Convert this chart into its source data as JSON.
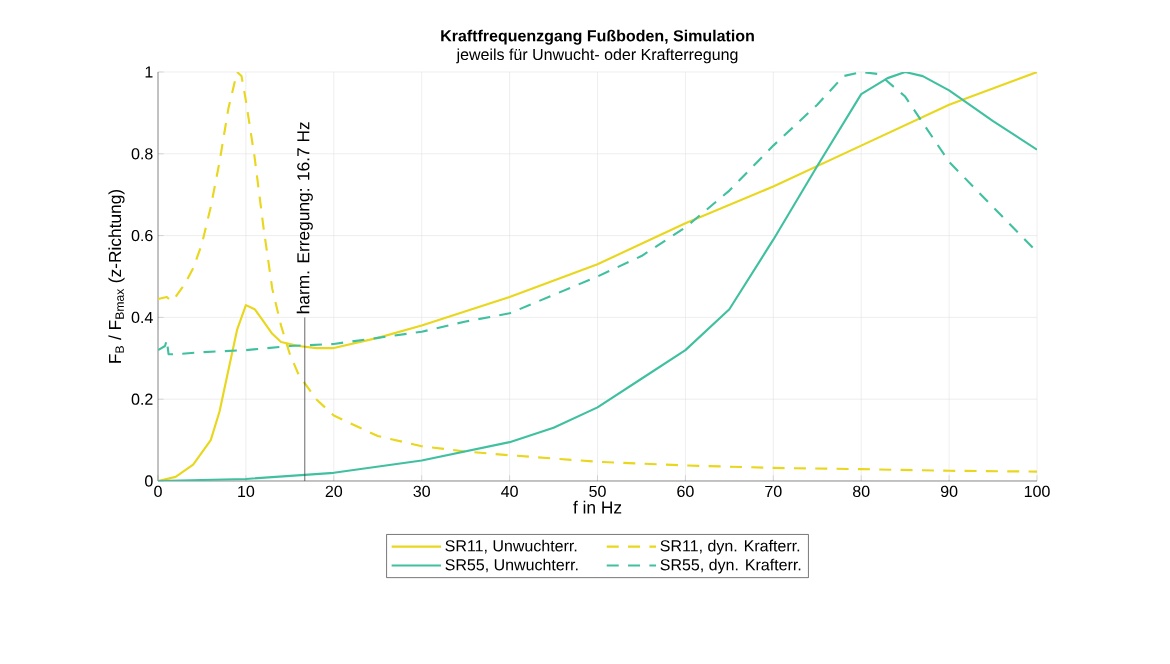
{
  "chart_data": {
    "type": "line",
    "title": "Kraftfrequenzgang Fußboden, Simulation",
    "subtitle": "jeweils für Unwucht- oder Krafterregung",
    "xlabel": "f in Hz",
    "ylabel": "F$_{B}$ / F$_{Bmax}$ (z-Richtung)",
    "xlim": [
      0,
      100
    ],
    "ylim": [
      0,
      1
    ],
    "xticks": [
      0,
      10,
      20,
      30,
      40,
      50,
      60,
      70,
      80,
      90,
      100
    ],
    "yticks": [
      0,
      0.2,
      0.4,
      0.6,
      0.8,
      1
    ],
    "grid": true,
    "legend": "bottom",
    "ref_lines": [
      {
        "axis": "x",
        "value": 16.7,
        "label": "harm. Erregung: 16.7 Hz",
        "color": "#404040"
      }
    ],
    "series": [
      {
        "name": "SR11, Unwuchterr.",
        "color": "#e8d71d",
        "line_style": "solid",
        "x": [
          0,
          2,
          4,
          6,
          7,
          8,
          9,
          10,
          11,
          12,
          13,
          14,
          16,
          18,
          20,
          25,
          30,
          40,
          50,
          60,
          70,
          80,
          90,
          100
        ],
        "values": [
          0,
          0.01,
          0.04,
          0.1,
          0.17,
          0.27,
          0.37,
          0.43,
          0.42,
          0.39,
          0.36,
          0.34,
          0.33,
          0.325,
          0.325,
          0.35,
          0.38,
          0.45,
          0.53,
          0.63,
          0.72,
          0.82,
          0.92,
          1.0
        ]
      },
      {
        "name": "SR11, dyn. Krafterr.",
        "color": "#e8d71d",
        "line_style": "dashed",
        "x": [
          0,
          1,
          1.5,
          2,
          3,
          4,
          5,
          6,
          7,
          8,
          9,
          9.5,
          10,
          11,
          12,
          13,
          14,
          15,
          16,
          18,
          20,
          25,
          30,
          35,
          40,
          50,
          60,
          70,
          80,
          90,
          100
        ],
        "values": [
          0.445,
          0.45,
          0.44,
          0.45,
          0.48,
          0.52,
          0.58,
          0.67,
          0.78,
          0.91,
          1.0,
          0.99,
          0.93,
          0.79,
          0.62,
          0.47,
          0.38,
          0.31,
          0.26,
          0.2,
          0.16,
          0.11,
          0.085,
          0.072,
          0.063,
          0.047,
          0.038,
          0.032,
          0.029,
          0.025,
          0.023
        ]
      },
      {
        "name": "SR55, Unwuchterr.",
        "color": "#40c0a0",
        "line_style": "solid",
        "x": [
          0,
          10,
          20,
          30,
          40,
          45,
          50,
          55,
          60,
          65,
          70,
          75,
          80,
          83,
          85,
          87,
          90,
          95,
          100
        ],
        "values": [
          0,
          0.005,
          0.02,
          0.05,
          0.095,
          0.13,
          0.18,
          0.25,
          0.32,
          0.42,
          0.59,
          0.77,
          0.946,
          0.985,
          1.0,
          0.99,
          0.955,
          0.88,
          0.81
        ]
      },
      {
        "name": "SR55, dyn. Krafterr.",
        "color": "#40c0a0",
        "line_style": "dashed",
        "x": [
          0,
          0.8,
          1,
          1.2,
          2,
          5,
          10,
          15,
          20,
          25,
          30,
          35,
          40,
          50,
          55,
          60,
          65,
          70,
          75,
          78,
          80,
          82,
          85,
          90,
          95,
          100
        ],
        "values": [
          0.32,
          0.33,
          0.345,
          0.31,
          0.31,
          0.315,
          0.32,
          0.33,
          0.335,
          0.35,
          0.365,
          0.39,
          0.41,
          0.5,
          0.55,
          0.62,
          0.71,
          0.82,
          0.92,
          0.99,
          1.0,
          0.995,
          0.94,
          0.78,
          0.67,
          0.56
        ]
      }
    ]
  }
}
